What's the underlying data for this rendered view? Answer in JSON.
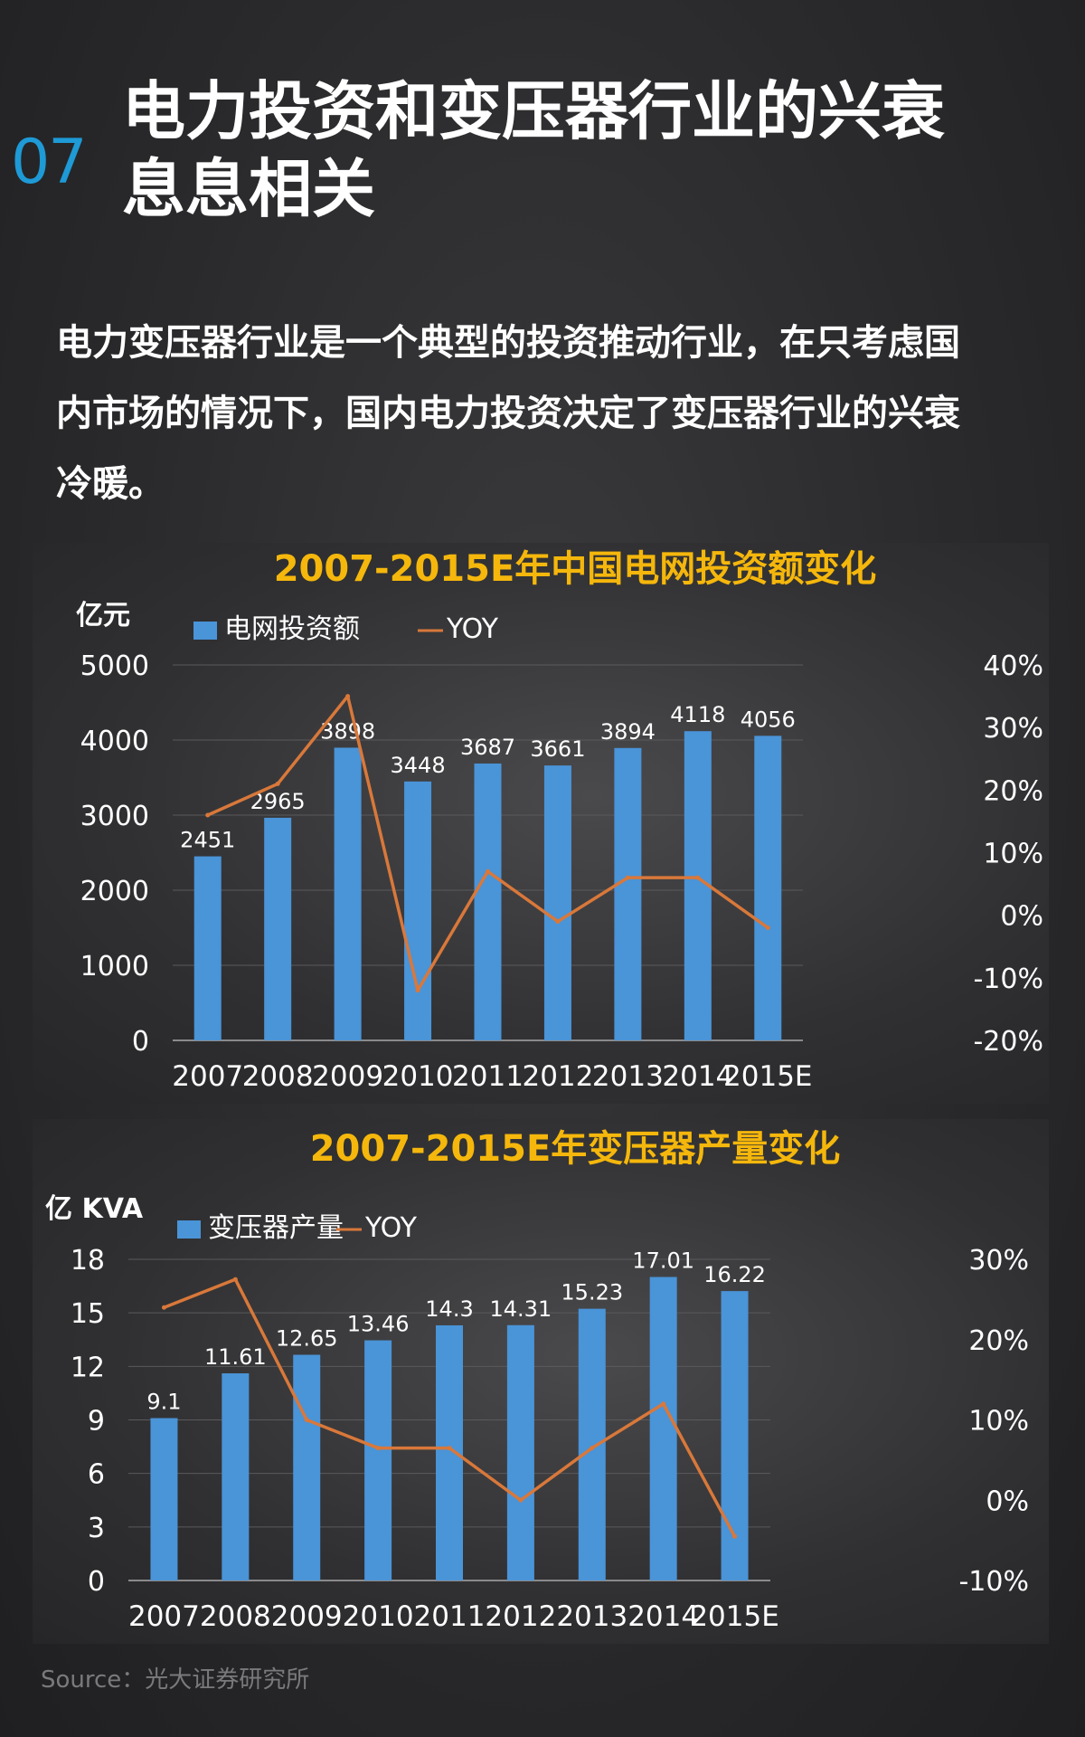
{
  "header": {
    "section_number": "07",
    "title_line1": "电力投资和变压器行业的兴衰",
    "title_line2": "息息相关"
  },
  "intro": {
    "line1": "电力变压器行业是一个典型的投资推动行业，在只考虑国",
    "line2": "内市场的情况下，国内电力投资决定了变压器行业的兴衰",
    "line3": "冷暖。"
  },
  "footer": {
    "source": "Source：光大证券研究所"
  },
  "colors": {
    "bar": "#4a94d8",
    "line": "#d9783a",
    "title": "#f5b70c",
    "axis": "#ffffff",
    "section_number": "#1e9ad6"
  },
  "chart_data": [
    {
      "type": "bar",
      "title": "2007-2015E年中国电网投资额变化",
      "ylabel": "亿元",
      "categories": [
        "2007",
        "2008",
        "2009",
        "2010",
        "2011",
        "2012",
        "2013",
        "2014",
        "2015E"
      ],
      "ylim": [
        0,
        5000
      ],
      "y_ticks": [
        "0",
        "1000",
        "2000",
        "3000",
        "4000",
        "5000"
      ],
      "y2lim": [
        -20,
        40
      ],
      "y2_ticks": [
        "-20%",
        "-10%",
        "0%",
        "10%",
        "20%",
        "30%",
        "40%"
      ],
      "y2_tick_values": [
        -20,
        -10,
        0,
        10,
        20,
        30,
        40
      ],
      "legend_position": "top-left",
      "grid": true,
      "series": [
        {
          "name": "电网投资额",
          "type": "bar",
          "axis": "left",
          "values": [
            2451,
            2965,
            3898,
            3448,
            3687,
            3661,
            3894,
            4118,
            4056
          ],
          "labels": [
            "2451",
            "2965",
            "3898",
            "3448",
            "3687",
            "3661",
            "3894",
            "4118",
            "4056"
          ]
        },
        {
          "name": "YOY",
          "type": "line",
          "axis": "right",
          "values": [
            16,
            21,
            35,
            -12,
            7,
            -1,
            6,
            6,
            -2
          ]
        }
      ]
    },
    {
      "type": "bar",
      "title": "2007-2015E年变压器产量变化",
      "ylabel": "亿 KVA",
      "categories": [
        "2007",
        "2008",
        "2009",
        "2010",
        "2011",
        "2012",
        "2013",
        "2014",
        "2015E"
      ],
      "ylim": [
        0,
        18
      ],
      "y_ticks": [
        "0",
        "3",
        "6",
        "9",
        "12",
        "15",
        "18"
      ],
      "y2lim": [
        -10,
        30
      ],
      "y2_ticks": [
        "-10%",
        "0%",
        "10%",
        "20%",
        "30%"
      ],
      "y2_tick_values": [
        -10,
        0,
        10,
        20,
        30
      ],
      "legend_position": "top-left",
      "grid": true,
      "series": [
        {
          "name": "变压器产量",
          "type": "bar",
          "axis": "left",
          "values": [
            9.1,
            11.61,
            12.65,
            13.46,
            14.3,
            14.31,
            15.23,
            17.01,
            16.22
          ],
          "labels": [
            "9.1",
            "11.61",
            "12.65",
            "13.46",
            "14.3",
            "14.31",
            "15.23",
            "17.01",
            "16.22"
          ]
        },
        {
          "name": "YOY",
          "type": "line",
          "axis": "right",
          "values": [
            24,
            27.5,
            10,
            6.5,
            6.5,
            0,
            6.5,
            12,
            -4.5
          ]
        }
      ]
    }
  ]
}
